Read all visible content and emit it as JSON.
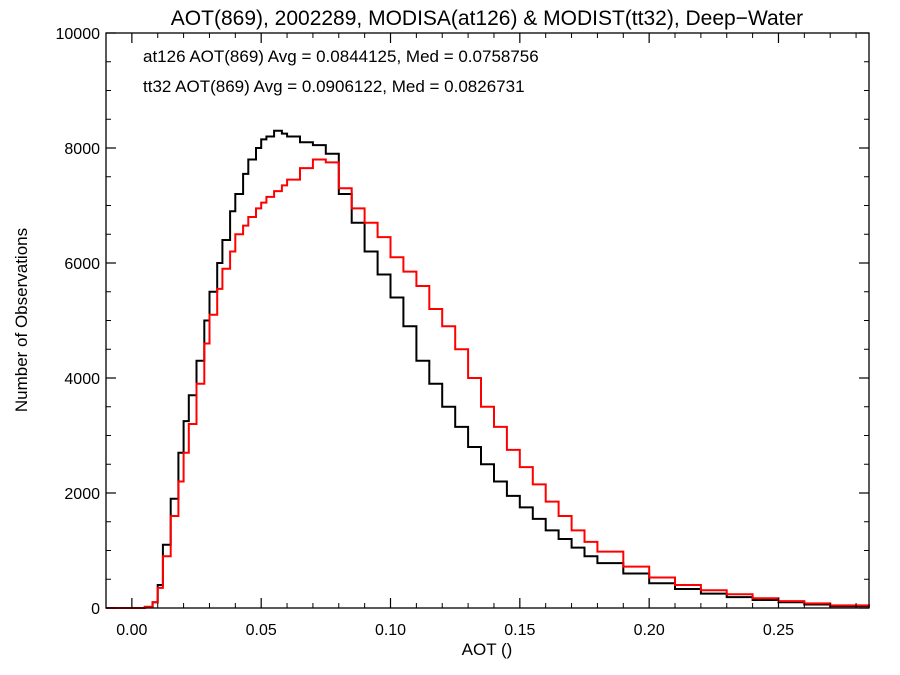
{
  "chart_data": {
    "type": "line",
    "title": "AOT(869), 2002289, MODISA(at126) & MODIST(tt32), Deep−Water",
    "xlabel": "AOT ()",
    "ylabel": "Number of Observations",
    "xlim": [
      -0.01,
      0.285
    ],
    "ylim": [
      0,
      10000
    ],
    "x_ticks": [
      "0.00",
      "0.05",
      "0.10",
      "0.15",
      "0.20",
      "0.25"
    ],
    "y_ticks": [
      "0",
      "2000",
      "4000",
      "6000",
      "8000",
      "10000"
    ],
    "grid": false,
    "annotations": [
      {
        "text": "at126 AOT(869) Avg = 0.0844125, Med = 0.0758756",
        "color": "#000000"
      },
      {
        "text": "tt32 AOT(869) Avg = 0.0906122, Med = 0.0826731",
        "color": "#ff0000"
      }
    ],
    "series": [
      {
        "color": "#000000",
        "x": [
          -0.01,
          0.0,
          0.005,
          0.008,
          0.01,
          0.012,
          0.015,
          0.018,
          0.02,
          0.022,
          0.025,
          0.028,
          0.03,
          0.033,
          0.035,
          0.038,
          0.04,
          0.043,
          0.045,
          0.048,
          0.05,
          0.052,
          0.055,
          0.058,
          0.06,
          0.065,
          0.07,
          0.075,
          0.08,
          0.085,
          0.09,
          0.095,
          0.1,
          0.105,
          0.11,
          0.115,
          0.12,
          0.125,
          0.13,
          0.135,
          0.14,
          0.145,
          0.15,
          0.155,
          0.16,
          0.165,
          0.17,
          0.175,
          0.18,
          0.19,
          0.2,
          0.21,
          0.22,
          0.23,
          0.24,
          0.25,
          0.26,
          0.27,
          0.285
        ],
        "y": [
          0,
          0,
          20,
          100,
          400,
          1100,
          1900,
          2700,
          3250,
          3700,
          4300,
          5000,
          5500,
          6000,
          6400,
          6900,
          7200,
          7550,
          7800,
          8000,
          8150,
          8200,
          8300,
          8250,
          8200,
          8100,
          8050,
          7900,
          7200,
          6700,
          6200,
          5800,
          5400,
          4900,
          4300,
          3900,
          3500,
          3150,
          2800,
          2500,
          2200,
          1950,
          1750,
          1550,
          1350,
          1200,
          1050,
          900,
          780,
          600,
          430,
          330,
          250,
          190,
          140,
          100,
          60,
          30,
          10
        ]
      },
      {
        "color": "#ff0000",
        "x": [
          -0.01,
          0.0,
          0.005,
          0.008,
          0.01,
          0.012,
          0.015,
          0.018,
          0.02,
          0.022,
          0.025,
          0.028,
          0.03,
          0.033,
          0.035,
          0.038,
          0.04,
          0.043,
          0.045,
          0.048,
          0.05,
          0.052,
          0.055,
          0.058,
          0.06,
          0.065,
          0.07,
          0.075,
          0.08,
          0.085,
          0.09,
          0.095,
          0.1,
          0.105,
          0.11,
          0.115,
          0.12,
          0.125,
          0.13,
          0.135,
          0.14,
          0.145,
          0.15,
          0.155,
          0.16,
          0.165,
          0.17,
          0.175,
          0.18,
          0.19,
          0.2,
          0.21,
          0.22,
          0.23,
          0.24,
          0.25,
          0.26,
          0.27,
          0.285
        ],
        "y": [
          0,
          0,
          20,
          100,
          350,
          900,
          1600,
          2200,
          2700,
          3200,
          3900,
          4600,
          5100,
          5550,
          5900,
          6200,
          6500,
          6650,
          6800,
          6950,
          7050,
          7150,
          7250,
          7350,
          7450,
          7650,
          7800,
          7750,
          7300,
          6950,
          6700,
          6450,
          6100,
          5850,
          5600,
          5200,
          4900,
          4500,
          4000,
          3500,
          3150,
          2750,
          2450,
          2150,
          1850,
          1600,
          1350,
          1150,
          980,
          720,
          530,
          400,
          310,
          240,
          170,
          120,
          80,
          45,
          15
        ]
      }
    ]
  }
}
